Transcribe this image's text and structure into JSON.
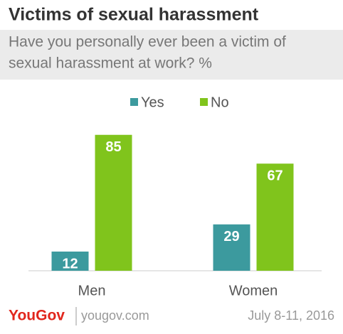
{
  "chart_data": {
    "type": "bar",
    "title": "Victims of sexual harassment",
    "subtitle": [
      "Have you personally ever been a victim of",
      "sexual harassment at work? %"
    ],
    "categories": [
      "Men",
      "Women"
    ],
    "series": [
      {
        "name": "Yes",
        "color": "#3c9a9e",
        "values": [
          12,
          29
        ]
      },
      {
        "name": "No",
        "color": "#80c41c",
        "values": [
          85,
          67
        ]
      }
    ]
  },
  "footer": {
    "brand": "YouGov",
    "site": "yougov.com",
    "date": "July 8-11, 2016"
  }
}
